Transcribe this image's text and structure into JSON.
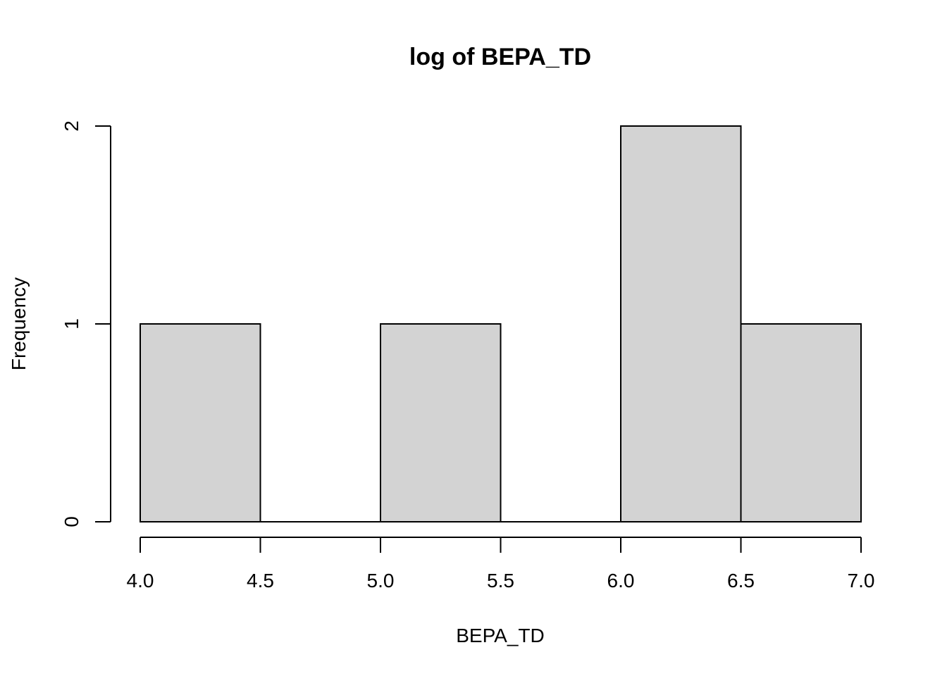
{
  "chart_data": {
    "type": "bar",
    "title": "log of BEPA_TD",
    "xlabel": "BEPA_TD",
    "ylabel": "Frequency",
    "bins": [
      {
        "start": 4.0,
        "end": 4.5,
        "count": 1
      },
      {
        "start": 4.5,
        "end": 5.0,
        "count": 0
      },
      {
        "start": 5.0,
        "end": 5.5,
        "count": 1
      },
      {
        "start": 5.5,
        "end": 6.0,
        "count": 0
      },
      {
        "start": 6.0,
        "end": 6.5,
        "count": 2
      },
      {
        "start": 6.5,
        "end": 7.0,
        "count": 1
      }
    ],
    "xticks": [
      "4.0",
      "4.5",
      "5.0",
      "5.5",
      "6.0",
      "6.5",
      "7.0"
    ],
    "yticks": [
      "0",
      "1",
      "2"
    ],
    "xlim": [
      4.0,
      7.0
    ],
    "ylim": [
      0,
      2
    ],
    "bar_color": "#d3d3d3",
    "grid": false
  }
}
